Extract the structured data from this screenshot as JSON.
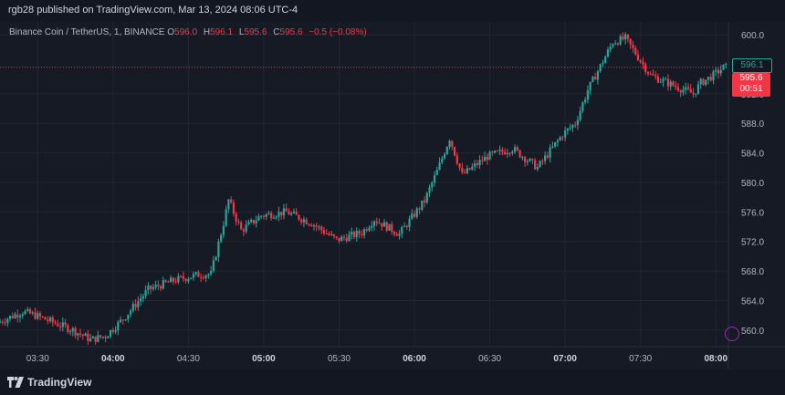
{
  "header": {
    "publisher": "rgb28 published on TradingView.com, Mar 13, 2024 08:06 UTC-4"
  },
  "legend": {
    "symbol": "Binance Coin / TetherUS, 1, BINANCE",
    "open_label": "O",
    "open": "596.0",
    "high_label": "H",
    "high": "596.1",
    "low_label": "L",
    "low": "595.6",
    "close_label": "C",
    "close": "595.6",
    "change": "−0.5 (−0.08%)"
  },
  "price_axis": {
    "ticks": [
      "600.0",
      "592.0",
      "588.0",
      "584.0",
      "580.0",
      "576.0",
      "572.0",
      "568.0",
      "564.0",
      "560.0"
    ]
  },
  "time_axis": {
    "ticks": [
      "03:30",
      "04:00",
      "04:30",
      "05:00",
      "05:30",
      "06:00",
      "06:30",
      "07:00",
      "07:30",
      "08:00"
    ]
  },
  "price_tags": {
    "high_tag": "596.1",
    "last_price": "595.6",
    "countdown": "00:51"
  },
  "footer": {
    "brand": "TradingView"
  },
  "colors": {
    "up": "#26a69a",
    "down": "#f23645",
    "background": "#161a25",
    "grid": "#232632"
  },
  "chart_data": {
    "type": "candlestick",
    "title": "Binance Coin / TetherUS, 1, BINANCE",
    "x_range": [
      "03:15",
      "08:05"
    ],
    "ylim": [
      558.0,
      601.5
    ],
    "grid": true,
    "last_price": 595.6,
    "path": [
      [
        "03:15",
        561.0
      ],
      [
        "03:25",
        562.5
      ],
      [
        "03:30",
        562.0
      ],
      [
        "03:45",
        560.0
      ],
      [
        "03:52",
        558.7
      ],
      [
        "03:58",
        559.2
      ],
      [
        "04:05",
        561.5
      ],
      [
        "04:15",
        565.5
      ],
      [
        "04:25",
        566.7
      ],
      [
        "04:35",
        567.5
      ],
      [
        "04:40",
        567.6
      ],
      [
        "04:45",
        574.5
      ],
      [
        "04:47",
        577.6
      ],
      [
        "04:52",
        573.5
      ],
      [
        "05:00",
        575.5
      ],
      [
        "05:10",
        576.0
      ],
      [
        "05:20",
        574.5
      ],
      [
        "05:30",
        572.2
      ],
      [
        "05:40",
        573.2
      ],
      [
        "05:45",
        575.0
      ],
      [
        "05:55",
        573.0
      ],
      [
        "06:05",
        577.5
      ],
      [
        "06:10",
        581.5
      ],
      [
        "06:15",
        586.0
      ],
      [
        "06:20",
        581.0
      ],
      [
        "06:30",
        583.5
      ],
      [
        "06:40",
        584.6
      ],
      [
        "06:50",
        582.0
      ],
      [
        "07:00",
        586.5
      ],
      [
        "07:05",
        588.0
      ],
      [
        "07:10",
        592.5
      ],
      [
        "07:20",
        599.0
      ],
      [
        "07:25",
        599.5
      ],
      [
        "07:35",
        594.5
      ],
      [
        "07:45",
        593.0
      ],
      [
        "07:52",
        592.0
      ],
      [
        "07:55",
        593.5
      ],
      [
        "08:00",
        594.5
      ],
      [
        "08:04",
        595.6
      ]
    ]
  }
}
